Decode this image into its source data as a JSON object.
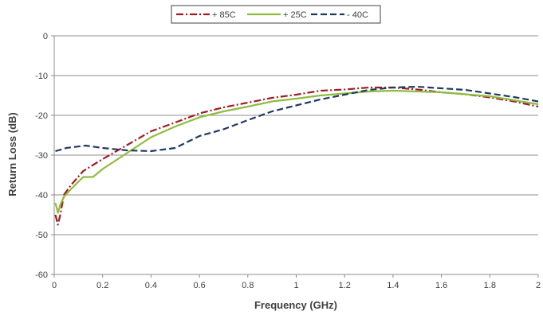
{
  "chart_data": {
    "type": "line",
    "title": "",
    "xlabel": "Frequency (GHz)",
    "ylabel": "Return Loss (dB)",
    "xlim": [
      0,
      2
    ],
    "ylim": [
      -60,
      0
    ],
    "xticks": [
      0,
      0.2,
      0.4,
      0.6,
      0.8,
      1,
      1.2,
      1.4,
      1.6,
      1.8,
      2
    ],
    "xtick_labels": [
      "0",
      "0.2",
      "0.4",
      "0.6",
      "0.8",
      "1",
      "1.2",
      "1.4",
      "1.6",
      "1.8",
      "2"
    ],
    "yticks": [
      0,
      -10,
      -20,
      -30,
      -40,
      -50,
      -60
    ],
    "ytick_labels": [
      "0",
      "-10",
      "-20",
      "-30",
      "-40",
      "-50",
      "-60"
    ],
    "grid": "horizontal",
    "legend_position": "top-center",
    "series": [
      {
        "name": "+ 85C",
        "color": "#a01c24",
        "dash": "dash-dot",
        "points": [
          [
            0.005,
            -45
          ],
          [
            0.015,
            -47.5
          ],
          [
            0.025,
            -45
          ],
          [
            0.04,
            -40
          ],
          [
            0.07,
            -37.5
          ],
          [
            0.12,
            -34
          ],
          [
            0.2,
            -31
          ],
          [
            0.3,
            -27.5
          ],
          [
            0.4,
            -24
          ],
          [
            0.5,
            -21.8
          ],
          [
            0.6,
            -19.5
          ],
          [
            0.7,
            -18
          ],
          [
            0.8,
            -16.8
          ],
          [
            0.9,
            -15.6
          ],
          [
            1.0,
            -14.8
          ],
          [
            1.1,
            -13.8
          ],
          [
            1.2,
            -13.5
          ],
          [
            1.3,
            -13
          ],
          [
            1.4,
            -13
          ],
          [
            1.5,
            -13.5
          ],
          [
            1.6,
            -14.2
          ],
          [
            1.7,
            -14.7
          ],
          [
            1.8,
            -15.5
          ],
          [
            1.9,
            -16.5
          ],
          [
            2.0,
            -17.8
          ]
        ]
      },
      {
        "name": "+ 25C",
        "color": "#8fbc3f",
        "dash": "solid",
        "points": [
          [
            0.005,
            -42
          ],
          [
            0.015,
            -44.5
          ],
          [
            0.025,
            -42.5
          ],
          [
            0.04,
            -40.5
          ],
          [
            0.07,
            -38.5
          ],
          [
            0.12,
            -35.5
          ],
          [
            0.16,
            -35.5
          ],
          [
            0.2,
            -33.5
          ],
          [
            0.3,
            -29.5
          ],
          [
            0.4,
            -25.5
          ],
          [
            0.5,
            -22.8
          ],
          [
            0.6,
            -20.5
          ],
          [
            0.7,
            -19
          ],
          [
            0.8,
            -17.8
          ],
          [
            0.9,
            -16.5
          ],
          [
            1.0,
            -15.8
          ],
          [
            1.1,
            -15
          ],
          [
            1.2,
            -14.5
          ],
          [
            1.3,
            -14
          ],
          [
            1.4,
            -13.8
          ],
          [
            1.5,
            -14
          ],
          [
            1.6,
            -14.2
          ],
          [
            1.7,
            -14.7
          ],
          [
            1.8,
            -15.2
          ],
          [
            1.9,
            -16.2
          ],
          [
            2.0,
            -17.2
          ]
        ]
      },
      {
        "name": "- 40C",
        "color": "#1f3864",
        "dash": "dashed",
        "points": [
          [
            0.005,
            -29
          ],
          [
            0.05,
            -28.2
          ],
          [
            0.13,
            -27.6
          ],
          [
            0.2,
            -28.2
          ],
          [
            0.3,
            -28.8
          ],
          [
            0.4,
            -29
          ],
          [
            0.5,
            -28.2
          ],
          [
            0.6,
            -25.2
          ],
          [
            0.7,
            -23.5
          ],
          [
            0.8,
            -21.2
          ],
          [
            0.9,
            -19
          ],
          [
            1.0,
            -17.5
          ],
          [
            1.1,
            -16
          ],
          [
            1.2,
            -14.8
          ],
          [
            1.3,
            -13.6
          ],
          [
            1.4,
            -13
          ],
          [
            1.5,
            -12.8
          ],
          [
            1.6,
            -13.2
          ],
          [
            1.7,
            -13.6
          ],
          [
            1.8,
            -14.5
          ],
          [
            1.9,
            -15.4
          ],
          [
            2.0,
            -16.5
          ]
        ]
      }
    ]
  }
}
